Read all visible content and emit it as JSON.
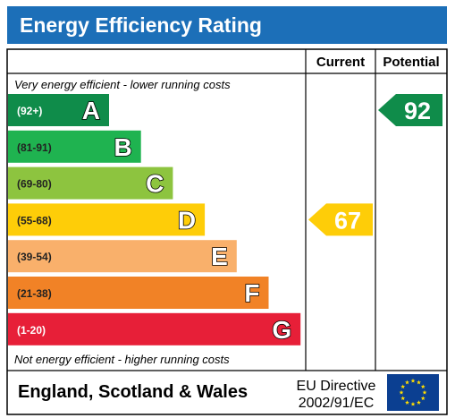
{
  "title": "Energy Efficiency Rating",
  "columns": {
    "current": "Current",
    "potential": "Potential"
  },
  "top_note": "Very energy efficient - lower running costs",
  "bottom_note": "Not energy efficient - higher running costs",
  "footer": {
    "region": "England, Scotland & Wales",
    "directive_line1": "EU Directive",
    "directive_line2": "2002/91/EC",
    "flag_icon": "eu-flag-icon"
  },
  "colors": {
    "title_bg": "#1c6fb8",
    "A": "#0f8c4a",
    "B": "#1fb350",
    "C": "#8dc43f",
    "D": "#fecd08",
    "E": "#f9b06b",
    "F": "#f18226",
    "G": "#e71f38",
    "eu_blue": "#0b3f91",
    "eu_star": "#ffdd00"
  },
  "chart_data": {
    "type": "bar",
    "title": "Energy Efficiency Rating",
    "bands": [
      {
        "letter": "A",
        "range": "(92+)"
      },
      {
        "letter": "B",
        "range": "(81-91)"
      },
      {
        "letter": "C",
        "range": "(69-80)"
      },
      {
        "letter": "D",
        "range": "(55-68)"
      },
      {
        "letter": "E",
        "range": "(39-54)"
      },
      {
        "letter": "F",
        "range": "(21-38)"
      },
      {
        "letter": "G",
        "range": "(1-20)"
      }
    ],
    "current": {
      "value": 67,
      "band": "D"
    },
    "potential": {
      "value": 92,
      "band": "A"
    }
  }
}
